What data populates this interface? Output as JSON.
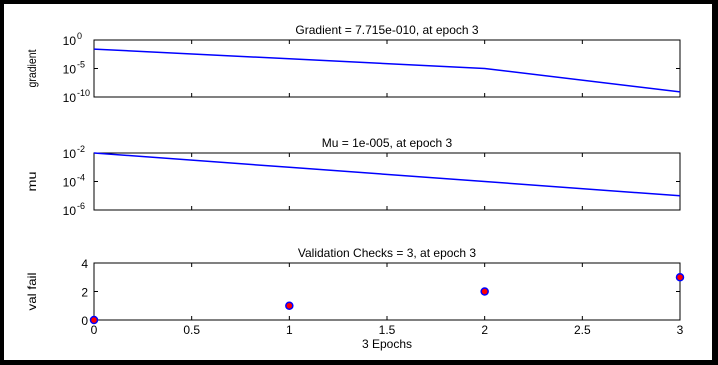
{
  "window": {
    "background": "#ffffff",
    "axes_color": "#000000"
  },
  "chart_data": [
    {
      "type": "line",
      "title": "Gradient = 7.715e-010, at epoch 3",
      "xlabel": "",
      "ylabel": "gradient",
      "y_scale": "log",
      "xlim": [
        0,
        3
      ],
      "ylim": [
        1e-10,
        1
      ],
      "yticks": [
        {
          "value": 1,
          "base": "10",
          "exp": "0"
        },
        {
          "value": 1e-05,
          "base": "10",
          "exp": "-5"
        },
        {
          "value": 1e-10,
          "base": "10",
          "exp": "-10"
        }
      ],
      "x_tick_labels_shown": false,
      "series": [
        {
          "x": [
            0,
            1,
            2,
            3
          ],
          "y": [
            0.025,
            0.0005,
            1e-05,
            7.715e-10
          ],
          "color": "#0000ff"
        }
      ]
    },
    {
      "type": "line",
      "title": "Mu = 1e-005, at epoch 3",
      "xlabel": "",
      "ylabel": "mu",
      "y_scale": "log",
      "xlim": [
        0,
        3
      ],
      "ylim": [
        1e-06,
        0.01
      ],
      "yticks": [
        {
          "value": 0.01,
          "base": "10",
          "exp": "-2"
        },
        {
          "value": 0.0001,
          "base": "10",
          "exp": "-4"
        },
        {
          "value": 1e-06,
          "base": "10",
          "exp": "-6"
        }
      ],
      "x_tick_labels_shown": false,
      "series": [
        {
          "x": [
            0,
            1,
            2,
            3
          ],
          "y": [
            0.01,
            0.001,
            0.0001,
            1e-05
          ],
          "color": "#0000ff"
        }
      ]
    },
    {
      "type": "scatter",
      "title": "Validation Checks = 3, at epoch 3",
      "xlabel": "3 Epochs",
      "ylabel": "val fail",
      "y_scale": "linear",
      "xlim": [
        0,
        3
      ],
      "ylim": [
        0,
        4
      ],
      "yticks": [
        {
          "value": 0,
          "label": "0"
        },
        {
          "value": 2,
          "label": "2"
        },
        {
          "value": 4,
          "label": "4"
        }
      ],
      "xticks": [
        {
          "value": 0,
          "label": "0"
        },
        {
          "value": 0.5,
          "label": "0.5"
        },
        {
          "value": 1,
          "label": "1"
        },
        {
          "value": 1.5,
          "label": "1.5"
        },
        {
          "value": 2,
          "label": "2"
        },
        {
          "value": 2.5,
          "label": "2.5"
        },
        {
          "value": 3,
          "label": "3"
        }
      ],
      "x_tick_labels_shown": true,
      "series": [
        {
          "x": [
            0,
            1,
            2,
            3
          ],
          "y": [
            0,
            1,
            2,
            3
          ],
          "marker_fill": "#ff0000",
          "marker_edge": "#0000ff"
        }
      ]
    }
  ]
}
